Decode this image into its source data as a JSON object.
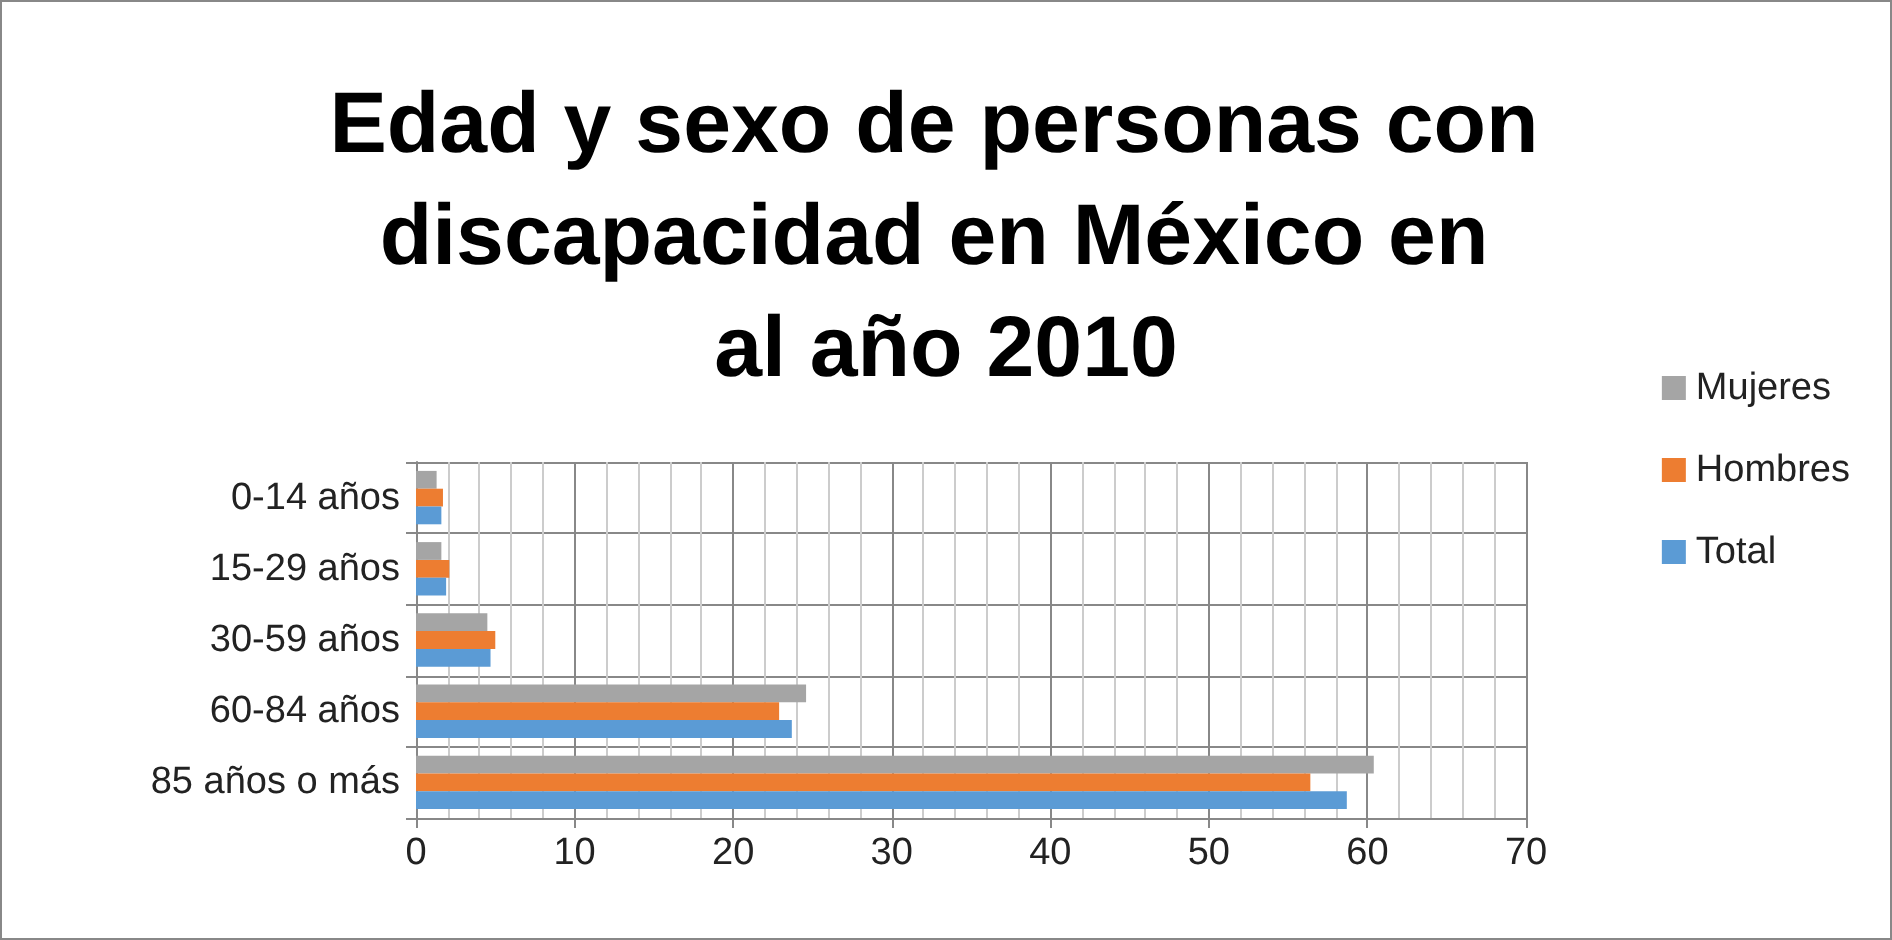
{
  "chart_data": {
    "type": "bar",
    "orientation": "horizontal",
    "title": "Edad y sexo de personas con discapacidad en México en al año 2010",
    "categories": [
      "0-14 años",
      "15-29 años",
      "30-59 años",
      "60-84 años",
      "85 años o más"
    ],
    "series": [
      {
        "name": "Mujeres",
        "color": "#a5a5a5",
        "values": [
          1.3,
          1.6,
          4.5,
          24.6,
          60.4
        ]
      },
      {
        "name": "Hombres",
        "color": "#ed7d31",
        "values": [
          1.7,
          2.1,
          5.0,
          22.9,
          56.4
        ]
      },
      {
        "name": "Total",
        "color": "#5b9bd5",
        "values": [
          1.6,
          1.9,
          4.7,
          23.7,
          58.7
        ]
      }
    ],
    "xlim": [
      0,
      70
    ],
    "xticks": [
      0,
      10,
      20,
      30,
      40,
      50,
      60,
      70
    ],
    "grid": true,
    "legend": "right"
  }
}
